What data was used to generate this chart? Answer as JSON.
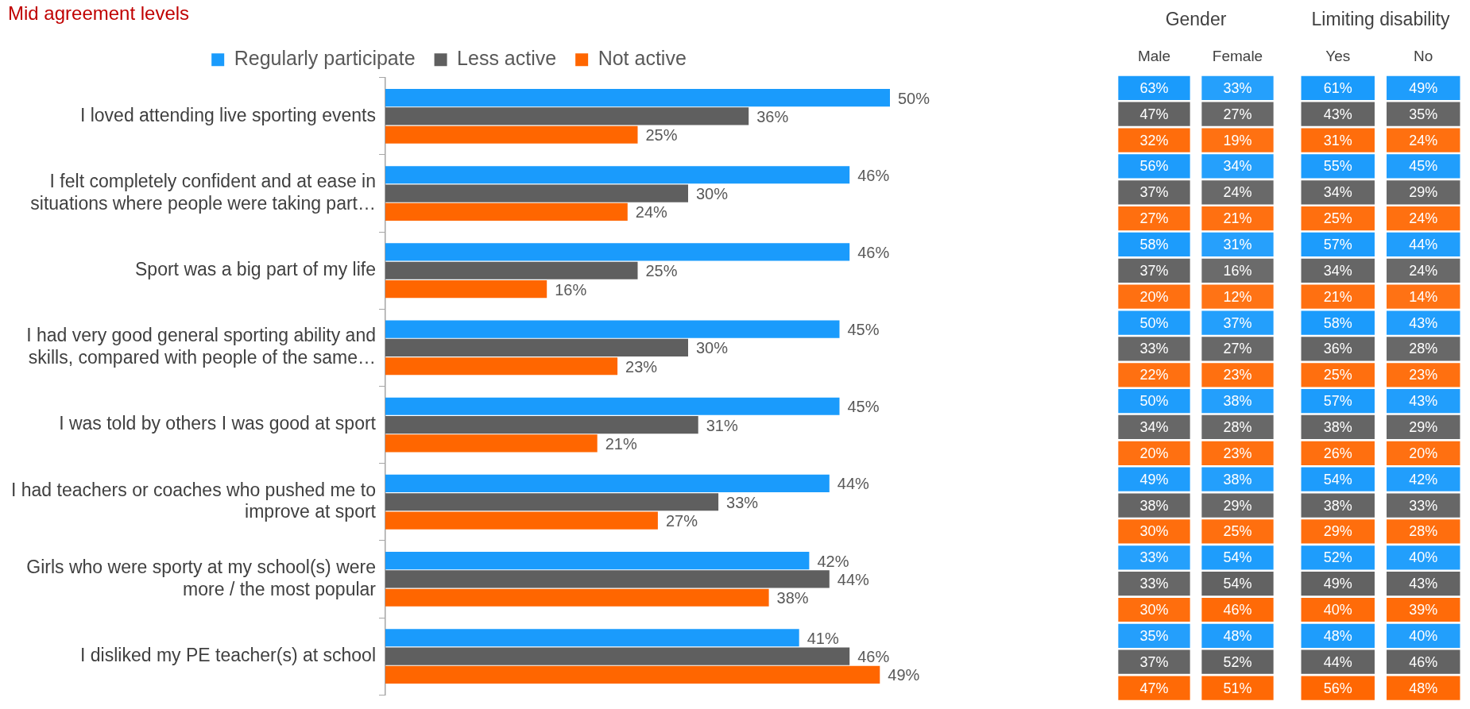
{
  "chart_data": [
    {
      "type": "bar",
      "orientation": "horizontal",
      "title": "Mid agreement levels",
      "legend": "top",
      "grid": false,
      "tick_labels": "y",
      "categories": [
        "I loved attending live sporting events",
        "I felt completely confident and at ease in situations where people were taking part…",
        "Sport was a big part of my life",
        "I had very good general sporting ability and skills, compared with people of the same…",
        "I was told by others I was good at sport",
        "I had teachers or coaches who pushed me to improve at sport",
        "Girls who were sporty at my school(s) were more / the most popular",
        "I disliked my PE teacher(s) at school"
      ],
      "series": [
        {
          "name": "Regularly participate",
          "color": "#1a9bfc",
          "values": [
            50,
            46,
            46,
            45,
            45,
            44,
            42,
            41
          ],
          "value_labels": [
            "50%",
            "46%",
            "46%",
            "45%",
            "45%",
            "44%",
            "42%",
            "41%"
          ]
        },
        {
          "name": "Less active",
          "color": "#5f5f5f",
          "values": [
            36,
            30,
            25,
            30,
            31,
            33,
            44,
            46
          ],
          "value_labels": [
            "36%",
            "30%",
            "25%",
            "30%",
            "31%",
            "33%",
            "44%",
            "46%"
          ]
        },
        {
          "name": "Not active",
          "color": "#ff6600",
          "values": [
            25,
            24,
            16,
            23,
            21,
            27,
            38,
            49
          ],
          "value_labels": [
            "25%",
            "24%",
            "16%",
            "23%",
            "21%",
            "27%",
            "38%",
            "49%"
          ]
        }
      ]
    },
    {
      "type": "heatmap",
      "title": "Gender",
      "categories": [
        "Male",
        "Female"
      ],
      "y_categories": [
        null,
        null,
        null,
        null,
        null,
        null,
        null,
        null,
        null,
        null,
        null,
        null,
        null,
        null,
        null,
        null,
        null,
        null,
        null,
        null,
        null,
        null,
        null,
        null
      ],
      "colors": [
        "#1a9bfc",
        "#5f5f5f",
        "#ff6600",
        "#1a9bfc",
        "#5f5f5f",
        "#ff6600",
        "#1a9bfc",
        "#5f5f5f",
        "#ff6600",
        "#1a9bfc",
        "#5f5f5f",
        "#ff6600",
        "#1a9bfc",
        "#5f5f5f",
        "#ff6600",
        "#1a9bfc",
        "#5f5f5f",
        "#ff6600",
        "#1a9bfc",
        "#5f5f5f",
        "#ff6600",
        "#1a9bfc",
        "#5f5f5f",
        "#ff6600"
      ],
      "cells": [
        [
          63,
          33
        ],
        [
          47,
          27
        ],
        [
          32,
          19
        ],
        [
          56,
          34
        ],
        [
          37,
          24
        ],
        [
          27,
          21
        ],
        [
          58,
          31
        ],
        [
          37,
          16
        ],
        [
          20,
          12
        ],
        [
          50,
          37
        ],
        [
          33,
          27
        ],
        [
          22,
          23
        ],
        [
          50,
          38
        ],
        [
          34,
          28
        ],
        [
          20,
          23
        ],
        [
          49,
          38
        ],
        [
          38,
          29
        ],
        [
          30,
          25
        ],
        [
          33,
          54
        ],
        [
          33,
          54
        ],
        [
          30,
          46
        ],
        [
          35,
          48
        ],
        [
          37,
          52
        ],
        [
          47,
          51
        ]
      ],
      "cell_labels": [
        [
          "63%",
          "33%"
        ],
        [
          "47%",
          "27%"
        ],
        [
          "32%",
          "19%"
        ],
        [
          "56%",
          "34%"
        ],
        [
          "37%",
          "24%"
        ],
        [
          "27%",
          "21%"
        ],
        [
          "58%",
          "31%"
        ],
        [
          "37%",
          "16%"
        ],
        [
          "20%",
          "12%"
        ],
        [
          "50%",
          "37%"
        ],
        [
          "33%",
          "27%"
        ],
        [
          "22%",
          "23%"
        ],
        [
          "50%",
          "38%"
        ],
        [
          "34%",
          "28%"
        ],
        [
          "20%",
          "23%"
        ],
        [
          "49%",
          "38%"
        ],
        [
          "38%",
          "29%"
        ],
        [
          "30%",
          "25%"
        ],
        [
          "33%",
          "54%"
        ],
        [
          "33%",
          "54%"
        ],
        [
          "30%",
          "46%"
        ],
        [
          "35%",
          "48%"
        ],
        [
          "37%",
          "52%"
        ],
        [
          "47%",
          "51%"
        ]
      ]
    },
    {
      "type": "heatmap",
      "title": "Limiting disability",
      "categories": [
        "Yes",
        "No"
      ],
      "y_categories": [
        null,
        null,
        null,
        null,
        null,
        null,
        null,
        null,
        null,
        null,
        null,
        null,
        null,
        null,
        null,
        null,
        null,
        null,
        null,
        null,
        null,
        null,
        null,
        null
      ],
      "colors": [
        "#1a9bfc",
        "#5f5f5f",
        "#ff6600",
        "#1a9bfc",
        "#5f5f5f",
        "#ff6600",
        "#1a9bfc",
        "#5f5f5f",
        "#ff6600",
        "#1a9bfc",
        "#5f5f5f",
        "#ff6600",
        "#1a9bfc",
        "#5f5f5f",
        "#ff6600",
        "#1a9bfc",
        "#5f5f5f",
        "#ff6600",
        "#1a9bfc",
        "#5f5f5f",
        "#ff6600",
        "#1a9bfc",
        "#5f5f5f",
        "#ff6600"
      ],
      "cells": [
        [
          61,
          49
        ],
        [
          43,
          35
        ],
        [
          31,
          24
        ],
        [
          55,
          45
        ],
        [
          34,
          29
        ],
        [
          25,
          24
        ],
        [
          57,
          44
        ],
        [
          34,
          24
        ],
        [
          21,
          14
        ],
        [
          58,
          43
        ],
        [
          36,
          28
        ],
        [
          25,
          23
        ],
        [
          57,
          43
        ],
        [
          38,
          29
        ],
        [
          26,
          20
        ],
        [
          54,
          42
        ],
        [
          38,
          33
        ],
        [
          29,
          28
        ],
        [
          52,
          40
        ],
        [
          49,
          43
        ],
        [
          40,
          39
        ],
        [
          48,
          40
        ],
        [
          44,
          46
        ],
        [
          56,
          48
        ]
      ],
      "cell_labels": [
        [
          "61%",
          "49%"
        ],
        [
          "43%",
          "35%"
        ],
        [
          "31%",
          "24%"
        ],
        [
          "55%",
          "45%"
        ],
        [
          "34%",
          "29%"
        ],
        [
          "25%",
          "24%"
        ],
        [
          "57%",
          "44%"
        ],
        [
          "34%",
          "24%"
        ],
        [
          "21%",
          "14%"
        ],
        [
          "58%",
          "43%"
        ],
        [
          "36%",
          "28%"
        ],
        [
          "25%",
          "23%"
        ],
        [
          "57%",
          "43%"
        ],
        [
          "38%",
          "29%"
        ],
        [
          "26%",
          "20%"
        ],
        [
          "54%",
          "42%"
        ],
        [
          "38%",
          "33%"
        ],
        [
          "29%",
          "28%"
        ],
        [
          "52%",
          "40%"
        ],
        [
          "49%",
          "43%"
        ],
        [
          "40%",
          "39%"
        ],
        [
          "48%",
          "40%"
        ],
        [
          "44%",
          "46%"
        ],
        [
          "56%",
          "48%"
        ]
      ]
    }
  ]
}
